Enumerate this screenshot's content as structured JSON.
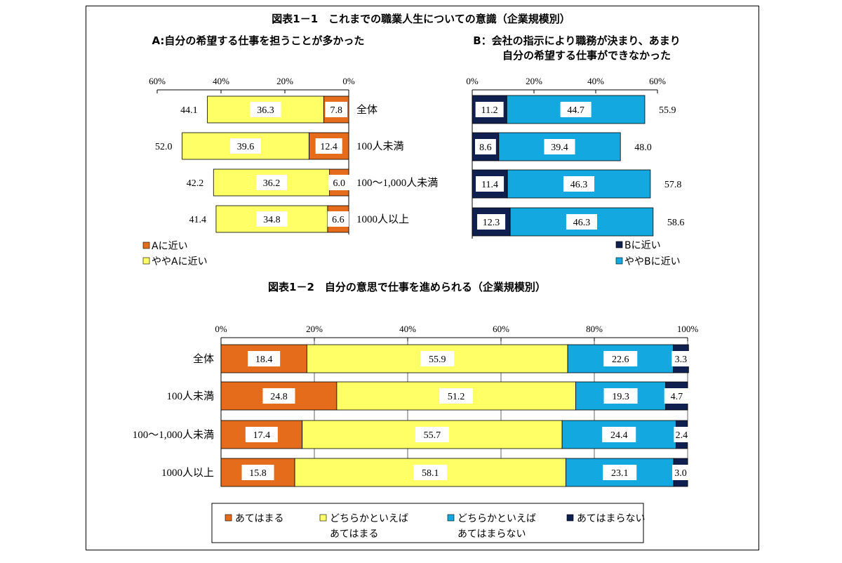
{
  "page": {
    "title": "図表1－1　これまでの職業人生についての意識（企業規模別）",
    "title2": "図表1－2　自分の意思で仕事を進められる（企業規模別）"
  },
  "colors": {
    "orange": "#E46C1B",
    "yellow": "#FFFF66",
    "cyan": "#13A9E0",
    "navy": "#0F1F4F"
  },
  "chart_data": [
    {
      "id": "chart-a",
      "type": "bar",
      "orientation": "horizontal-stacked",
      "title": "A:自分の希望する仕事を担うことが多かった",
      "categories": [
        "全体",
        "100人未満",
        "100～1,000人未満",
        "1000人以上"
      ],
      "series": [
        {
          "name": "Aに近い",
          "values": [
            7.8,
            12.4,
            6.0,
            6.6
          ]
        },
        {
          "name": "ややAに近い",
          "values": [
            36.3,
            39.6,
            36.2,
            34.8
          ]
        }
      ],
      "totals": [
        "44.1",
        "52.0",
        "42.2",
        "41.4"
      ],
      "xlim": [
        60,
        0
      ],
      "ticks": [
        "60%",
        "40%",
        "20%",
        "0%"
      ],
      "legend_position": "bottom-left"
    },
    {
      "id": "chart-b",
      "type": "bar",
      "orientation": "horizontal-stacked",
      "title": [
        "B：会社の指示により職務が決まり、あまり",
        "自分の希望する仕事ができなかった"
      ],
      "categories": [
        "全体",
        "100人未満",
        "100～1,000人未満",
        "1000人以上"
      ],
      "series": [
        {
          "name": "Bに近い",
          "values": [
            11.2,
            8.6,
            11.4,
            12.3
          ]
        },
        {
          "name": "ややBに近い",
          "values": [
            44.7,
            39.4,
            46.3,
            46.3
          ]
        }
      ],
      "totals": [
        "55.9",
        "48.0",
        "57.8",
        "58.6"
      ],
      "xlim": [
        0,
        60
      ],
      "ticks": [
        "0%",
        "20%",
        "40%",
        "60%"
      ],
      "legend_position": "bottom-right"
    },
    {
      "id": "chart-c",
      "type": "bar",
      "orientation": "horizontal-stacked-100",
      "title": "",
      "categories": [
        "全体",
        "100人未満",
        "100～1,000人未満",
        "1000人以上"
      ],
      "series": [
        {
          "name": "あてはまる",
          "values": [
            18.4,
            24.8,
            17.4,
            15.8
          ]
        },
        {
          "name": "どちらかといえば\nあてはまる",
          "values": [
            55.9,
            51.2,
            55.7,
            58.1
          ]
        },
        {
          "name": "どちらかといえば\nあてはまらない",
          "values": [
            22.6,
            19.3,
            24.4,
            23.1
          ]
        },
        {
          "name": "あてはまらない",
          "values": [
            3.3,
            4.7,
            2.4,
            3.0
          ]
        }
      ],
      "xlim": [
        0,
        100
      ],
      "ticks": [
        "0%",
        "20%",
        "40%",
        "60%",
        "80%",
        "100%"
      ],
      "legend_position": "bottom"
    }
  ]
}
